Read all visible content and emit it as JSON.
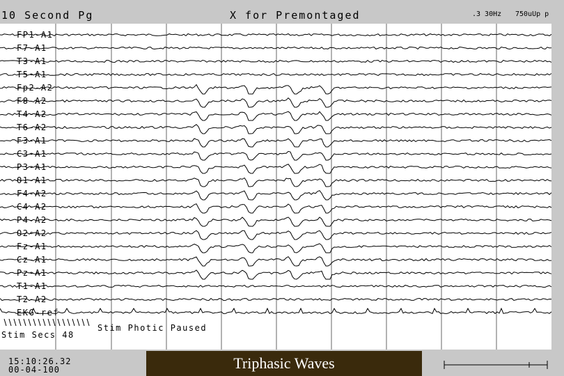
{
  "header": {
    "page": "10 Second Pg",
    "key_hint": "X for Premontaged",
    "filter": ".3 30Hz",
    "sensitivity": "750uUp p"
  },
  "channels": [
    "FP1-A1",
    "F7-A1",
    "T3-A1",
    "T5-A1",
    "Fp2-A2",
    "F8-A2",
    "T4-A2",
    "T6-A2",
    "F3-A1",
    "C3-A1",
    "P3-A1",
    "O1-A1",
    "F4-A2",
    "C4-A2",
    "P4-A2",
    "O2-A2",
    "Fz-A1",
    "Cz-A1",
    "Pz-A1",
    "T1-A1",
    "T2-A2",
    "EKG-ref"
  ],
  "stim": {
    "label": "Stim Photic Paused",
    "secs": "Stim Secs 48"
  },
  "footer": {
    "time": "15:10:26.32",
    "date": "00-04-100",
    "caption": "Triphasic Waves"
  },
  "colors": {
    "background": "#c8c8c8",
    "plot_background": "#ffffff",
    "caption_box": "#3a2a0c",
    "trace": "#000000",
    "gridline": "#666666"
  }
}
